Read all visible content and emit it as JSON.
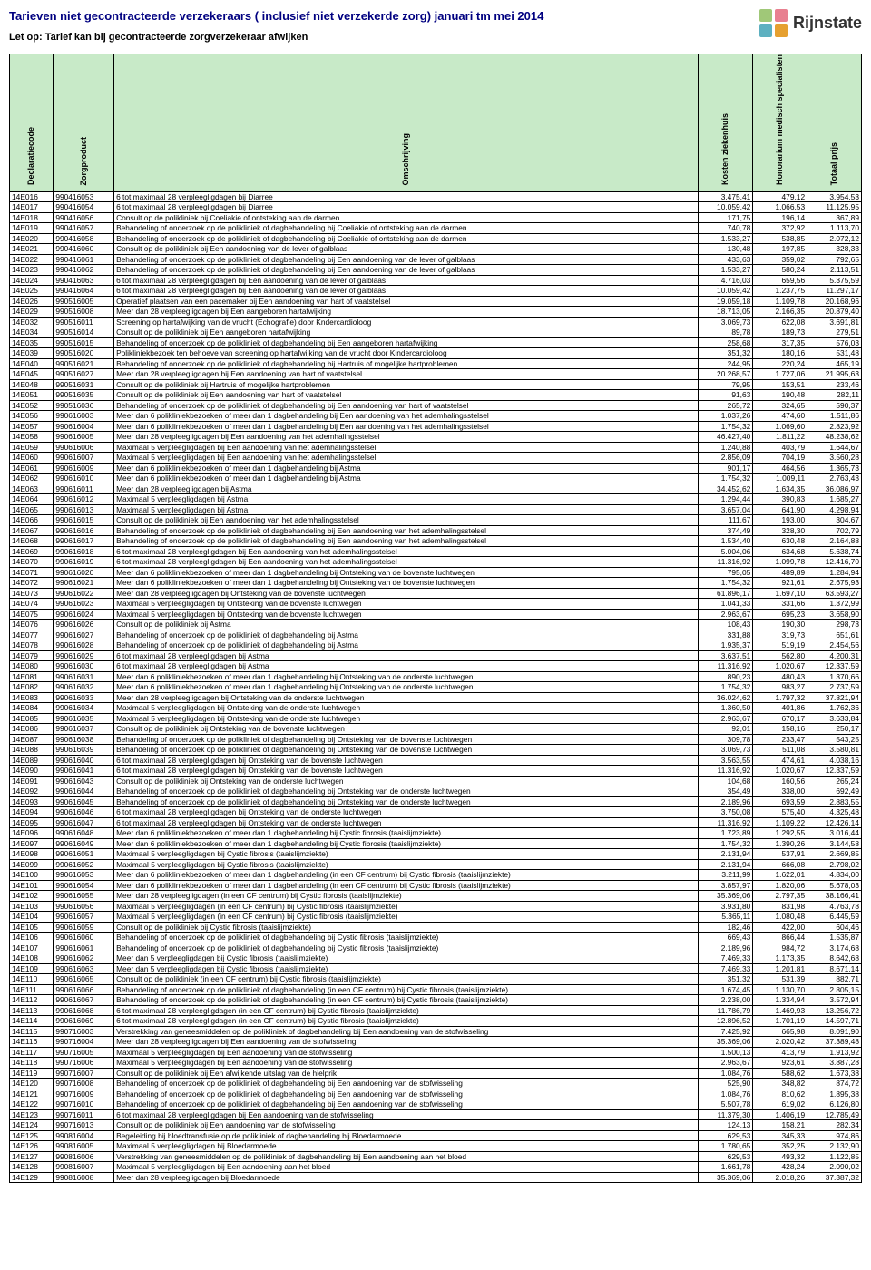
{
  "header": {
    "title": "Tarieven niet gecontracteerde verzekeraars ( inclusief niet verzekerde zorg) januari tm mei 2014",
    "subtitle": "Let op: Tarief kan bij gecontracteerde zorgverzekeraar afwijken",
    "brand": "Rijnstate",
    "logo_colors": [
      "#a0c878",
      "#e88090",
      "#5db0c0",
      "#e6a030"
    ]
  },
  "columns": [
    "Declaratiecode",
    "Zorgproduct",
    "Omschrijving",
    "Kosten ziekenhuis",
    "Honorarium medisch specialisten",
    "Totaal prijs"
  ],
  "rows": [
    [
      "14E016",
      "990416053",
      "6 tot maximaal 28 verpleegligdagen bij Diarree",
      "3.475,41",
      "479,12",
      "3.954,53"
    ],
    [
      "14E017",
      "990416054",
      "6 tot maximaal 28 verpleegligdagen bij Diarree",
      "10.059,42",
      "1.066,53",
      "11.125,95"
    ],
    [
      "14E018",
      "990416056",
      "Consult op de polikliniek bij Coeliakie of ontsteking aan de darmen",
      "171,75",
      "196,14",
      "367,89"
    ],
    [
      "14E019",
      "990416057",
      "Behandeling of onderzoek op de polikliniek of dagbehandeling bij Coeliakie of ontsteking aan de darmen",
      "740,78",
      "372,92",
      "1.113,70"
    ],
    [
      "14E020",
      "990416058",
      "Behandeling of onderzoek op de polikliniek of dagbehandeling bij Coeliakie of ontsteking aan de darmen",
      "1.533,27",
      "538,85",
      "2.072,12"
    ],
    [
      "14E021",
      "990416060",
      "Consult op de polikliniek bij Een aandoening van de lever of galblaas",
      "130,48",
      "197,85",
      "328,33"
    ],
    [
      "14E022",
      "990416061",
      "Behandeling of onderzoek op de polikliniek of dagbehandeling bij Een aandoening van de lever of galblaas",
      "433,63",
      "359,02",
      "792,65"
    ],
    [
      "14E023",
      "990416062",
      "Behandeling of onderzoek op de polikliniek of dagbehandeling bij Een aandoening van de lever of galblaas",
      "1.533,27",
      "580,24",
      "2.113,51"
    ],
    [
      "14E024",
      "990416063",
      "6 tot maximaal 28 verpleegligdagen bij Een aandoening van de lever of galblaas",
      "4.716,03",
      "659,56",
      "5.375,59"
    ],
    [
      "14E025",
      "990416064",
      "6 tot maximaal 28 verpleegligdagen bij Een aandoening van de lever of galblaas",
      "10.059,42",
      "1.237,75",
      "11.297,17"
    ],
    [
      "14E026",
      "990516005",
      "Operatief plaatsen van een pacemaker bij Een aandoening van hart of vaatstelsel",
      "19.059,18",
      "1.109,78",
      "20.168,96"
    ],
    [
      "14E029",
      "990516008",
      "Meer dan 28 verpleegligdagen bij Een aangeboren hartafwijking",
      "18.713,05",
      "2.166,35",
      "20.879,40"
    ],
    [
      "14E032",
      "990516011",
      "Screening op hartafwijking van de vrucht (Echografie) door Kndercardioloog",
      "3.069,73",
      "622,08",
      "3.691,81"
    ],
    [
      "14E034",
      "990516014",
      "Consult op de polikliniek bij Een aangeboren hartafwijking",
      "89,78",
      "189,73",
      "279,51"
    ],
    [
      "14E035",
      "990516015",
      "Behandeling of onderzoek op de polikliniek of dagbehandeling bij Een aangeboren hartafwijking",
      "258,68",
      "317,35",
      "576,03"
    ],
    [
      "14E039",
      "990516020",
      "Polikliniekbezoek ten behoeve van screening op hartafwijking van de vrucht door Kindercardioloog",
      "351,32",
      "180,16",
      "531,48"
    ],
    [
      "14E040",
      "990516021",
      "Behandeling of onderzoek op de polikliniek of dagbehandeling bij Hartruis of mogelijke hartproblemen",
      "244,95",
      "220,24",
      "465,19"
    ],
    [
      "14E045",
      "990516027",
      "Meer dan 28 verpleegligdagen bij Een aandoening van hart of vaatstelsel",
      "20.268,57",
      "1.727,06",
      "21.995,63"
    ],
    [
      "14E048",
      "990516031",
      "Consult op de polikliniek bij Hartruis of mogelijke hartproblemen",
      "79,95",
      "153,51",
      "233,46"
    ],
    [
      "14E051",
      "990516035",
      "Consult op de polikliniek bij Een aandoening van hart of vaatstelsel",
      "91,63",
      "190,48",
      "282,11"
    ],
    [
      "14E052",
      "990516036",
      "Behandeling of onderzoek op de polikliniek of dagbehandeling bij Een aandoening van hart of vaatstelsel",
      "265,72",
      "324,65",
      "590,37"
    ],
    [
      "14E056",
      "990616003",
      "Meer dan 6 polikliniekbezoeken of meer dan 1 dagbehandeling bij Een aandoening van het ademhalingsstelsel",
      "1.037,26",
      "474,60",
      "1.511,86"
    ],
    [
      "14E057",
      "990616004",
      "Meer dan 6 polikliniekbezoeken of meer dan 1 dagbehandeling bij Een aandoening van het ademhalingsstelsel",
      "1.754,32",
      "1.069,60",
      "2.823,92"
    ],
    [
      "14E058",
      "990616005",
      "Meer dan 28 verpleegligdagen bij Een aandoening van het ademhalingsstelsel",
      "46.427,40",
      "1.811,22",
      "48.238,62"
    ],
    [
      "14E059",
      "990616006",
      "Maximaal 5 verpleegligdagen bij Een aandoening van het ademhalingsstelsel",
      "1.240,88",
      "403,79",
      "1.644,67"
    ],
    [
      "14E060",
      "990616007",
      "Maximaal 5 verpleegligdagen bij Een aandoening van het ademhalingsstelsel",
      "2.856,09",
      "704,19",
      "3.560,28"
    ],
    [
      "14E061",
      "990616009",
      "Meer dan 6 polikliniekbezoeken of meer dan 1 dagbehandeling bij Astma",
      "901,17",
      "464,56",
      "1.365,73"
    ],
    [
      "14E062",
      "990616010",
      "Meer dan 6 polikliniekbezoeken of meer dan 1 dagbehandeling bij Astma",
      "1.754,32",
      "1.009,11",
      "2.763,43"
    ],
    [
      "14E063",
      "990616011",
      "Meer dan 28 verpleegligdagen bij Astma",
      "34.452,62",
      "1.634,35",
      "36.086,97"
    ],
    [
      "14E064",
      "990616012",
      "Maximaal 5 verpleegligdagen bij Astma",
      "1.294,44",
      "390,83",
      "1.685,27"
    ],
    [
      "14E065",
      "990616013",
      "Maximaal 5 verpleegligdagen bij Astma",
      "3.657,04",
      "641,90",
      "4.298,94"
    ],
    [
      "14E066",
      "990616015",
      "Consult op de polikliniek bij Een aandoening van het ademhalingsstelsel",
      "111,67",
      "193,00",
      "304,67"
    ],
    [
      "14E067",
      "990616016",
      "Behandeling of onderzoek op de polikliniek of dagbehandeling bij Een aandoening van het ademhalingsstelsel",
      "374,49",
      "328,30",
      "702,79"
    ],
    [
      "14E068",
      "990616017",
      "Behandeling of onderzoek op de polikliniek of dagbehandeling bij Een aandoening van het ademhalingsstelsel",
      "1.534,40",
      "630,48",
      "2.164,88"
    ],
    [
      "14E069",
      "990616018",
      "6 tot maximaal 28 verpleegligdagen bij Een aandoening van het ademhalingsstelsel",
      "5.004,06",
      "634,68",
      "5.638,74"
    ],
    [
      "14E070",
      "990616019",
      "6 tot maximaal 28 verpleegligdagen bij Een aandoening van het ademhalingsstelsel",
      "11.316,92",
      "1.099,78",
      "12.416,70"
    ],
    [
      "14E071",
      "990616020",
      "Meer dan 6 polikliniekbezoeken of meer dan 1 dagbehandeling bij Ontsteking van de bovenste luchtwegen",
      "795,05",
      "489,89",
      "1.284,94"
    ],
    [
      "14E072",
      "990616021",
      "Meer dan 6 polikliniekbezoeken of meer dan 1 dagbehandeling bij Ontsteking van de bovenste luchtwegen",
      "1.754,32",
      "921,61",
      "2.675,93"
    ],
    [
      "14E073",
      "990616022",
      "Meer dan 28 verpleegligdagen bij Ontsteking van de bovenste luchtwegen",
      "61.896,17",
      "1.697,10",
      "63.593,27"
    ],
    [
      "14E074",
      "990616023",
      "Maximaal 5 verpleegligdagen bij Ontsteking van de bovenste luchtwegen",
      "1.041,33",
      "331,66",
      "1.372,99"
    ],
    [
      "14E075",
      "990616024",
      "Maximaal 5 verpleegligdagen bij Ontsteking van de bovenste luchtwegen",
      "2.963,67",
      "695,23",
      "3.658,90"
    ],
    [
      "14E076",
      "990616026",
      "Consult op de polikliniek bij Astma",
      "108,43",
      "190,30",
      "298,73"
    ],
    [
      "14E077",
      "990616027",
      "Behandeling of onderzoek op de polikliniek of dagbehandeling bij Astma",
      "331,88",
      "319,73",
      "651,61"
    ],
    [
      "14E078",
      "990616028",
      "Behandeling of onderzoek op de polikliniek of dagbehandeling bij Astma",
      "1.935,37",
      "519,19",
      "2.454,56"
    ],
    [
      "14E079",
      "990616029",
      "6 tot maximaal 28 verpleegligdagen bij Astma",
      "3.637,51",
      "562,80",
      "4.200,31"
    ],
    [
      "14E080",
      "990616030",
      "6 tot maximaal 28 verpleegligdagen bij Astma",
      "11.316,92",
      "1.020,67",
      "12.337,59"
    ],
    [
      "14E081",
      "990616031",
      "Meer dan 6 polikliniekbezoeken of meer dan 1 dagbehandeling bij Ontsteking van de onderste luchtwegen",
      "890,23",
      "480,43",
      "1.370,66"
    ],
    [
      "14E082",
      "990616032",
      "Meer dan 6 polikliniekbezoeken of meer dan 1 dagbehandeling bij Ontsteking van de onderste luchtwegen",
      "1.754,32",
      "983,27",
      "2.737,59"
    ],
    [
      "14E083",
      "990616033",
      "Meer dan 28 verpleegligdagen bij Ontsteking van de onderste luchtwegen",
      "36.024,62",
      "1.797,32",
      "37.821,94"
    ],
    [
      "14E084",
      "990616034",
      "Maximaal 5 verpleegligdagen bij Ontsteking van de onderste luchtwegen",
      "1.360,50",
      "401,86",
      "1.762,36"
    ],
    [
      "14E085",
      "990616035",
      "Maximaal 5 verpleegligdagen bij Ontsteking van de onderste luchtwegen",
      "2.963,67",
      "670,17",
      "3.633,84"
    ],
    [
      "14E086",
      "990616037",
      "Consult op de polikliniek bij Ontsteking van de bovenste luchtwegen",
      "92,01",
      "158,16",
      "250,17"
    ],
    [
      "14E087",
      "990616038",
      "Behandeling of onderzoek op de polikliniek of dagbehandeling bij Ontsteking van de bovenste luchtwegen",
      "309,78",
      "233,47",
      "543,25"
    ],
    [
      "14E088",
      "990616039",
      "Behandeling of onderzoek op de polikliniek of dagbehandeling bij Ontsteking van de bovenste luchtwegen",
      "3.069,73",
      "511,08",
      "3.580,81"
    ],
    [
      "14E089",
      "990616040",
      "6 tot maximaal 28 verpleegligdagen bij Ontsteking van de bovenste luchtwegen",
      "3.563,55",
      "474,61",
      "4.038,16"
    ],
    [
      "14E090",
      "990616041",
      "6 tot maximaal 28 verpleegligdagen bij Ontsteking van de bovenste luchtwegen",
      "11.316,92",
      "1.020,67",
      "12.337,59"
    ],
    [
      "14E091",
      "990616043",
      "Consult op de polikliniek bij Ontsteking van de onderste luchtwegen",
      "104,68",
      "160,56",
      "265,24"
    ],
    [
      "14E092",
      "990616044",
      "Behandeling of onderzoek op de polikliniek of dagbehandeling bij Ontsteking van de onderste luchtwegen",
      "354,49",
      "338,00",
      "692,49"
    ],
    [
      "14E093",
      "990616045",
      "Behandeling of onderzoek op de polikliniek of dagbehandeling bij Ontsteking van de onderste luchtwegen",
      "2.189,96",
      "693,59",
      "2.883,55"
    ],
    [
      "14E094",
      "990616046",
      "6 tot maximaal 28 verpleegligdagen bij Ontsteking van de onderste luchtwegen",
      "3.750,08",
      "575,40",
      "4.325,48"
    ],
    [
      "14E095",
      "990616047",
      "6 tot maximaal 28 verpleegligdagen bij Ontsteking van de onderste luchtwegen",
      "11.316,92",
      "1.109,22",
      "12.426,14"
    ],
    [
      "14E096",
      "990616048",
      "Meer dan 6 polikliniekbezoeken of meer dan 1 dagbehandeling bij Cystic fibrosis (taaislijmziekte)",
      "1.723,89",
      "1.292,55",
      "3.016,44"
    ],
    [
      "14E097",
      "990616049",
      "Meer dan 6 polikliniekbezoeken of meer dan 1 dagbehandeling bij Cystic fibrosis (taaislijmziekte)",
      "1.754,32",
      "1.390,26",
      "3.144,58"
    ],
    [
      "14E098",
      "990616051",
      "Maximaal 5 verpleegligdagen bij Cystic fibrosis (taaislijmziekte)",
      "2.131,94",
      "537,91",
      "2.669,85"
    ],
    [
      "14E099",
      "990616052",
      "Maximaal 5 verpleegligdagen bij Cystic fibrosis (taaislijmziekte)",
      "2.131,94",
      "666,08",
      "2.798,02"
    ],
    [
      "14E100",
      "990616053",
      "Meer dan 6 polikliniekbezoeken of meer dan 1 dagbehandeling (in een CF centrum) bij Cystic fibrosis (taaislijmziekte)",
      "3.211,99",
      "1.622,01",
      "4.834,00"
    ],
    [
      "14E101",
      "990616054",
      "Meer dan 6 polikliniekbezoeken of meer dan 1 dagbehandeling (in een CF centrum) bij Cystic fibrosis (taaislijmziekte)",
      "3.857,97",
      "1.820,06",
      "5.678,03"
    ],
    [
      "14E102",
      "990616055",
      "Meer dan 28 verpleegligdagen (in een CF centrum) bij Cystic fibrosis (taaislijmziekte)",
      "35.369,06",
      "2.797,35",
      "38.166,41"
    ],
    [
      "14E103",
      "990616056",
      "Maximaal 5 verpleegligdagen (in een CF centrum) bij Cystic fibrosis (taaislijmziekte)",
      "3.931,80",
      "831,98",
      "4.763,78"
    ],
    [
      "14E104",
      "990616057",
      "Maximaal 5 verpleegligdagen (in een CF centrum) bij Cystic fibrosis (taaislijmziekte)",
      "5.365,11",
      "1.080,48",
      "6.445,59"
    ],
    [
      "14E105",
      "990616059",
      "Consult op de polikliniek bij Cystic fibrosis (taaislijmziekte)",
      "182,46",
      "422,00",
      "604,46"
    ],
    [
      "14E106",
      "990616060",
      "Behandeling of onderzoek op de polikliniek of dagbehandeling bij Cystic fibrosis (taaislijmziekte)",
      "669,43",
      "866,44",
      "1.535,87"
    ],
    [
      "14E107",
      "990616061",
      "Behandeling of onderzoek op de polikliniek of dagbehandeling bij Cystic fibrosis (taaislijmziekte)",
      "2.189,96",
      "984,72",
      "3.174,68"
    ],
    [
      "14E108",
      "990616062",
      "Meer dan 5 verpleegligdagen bij Cystic fibrosis (taaislijmziekte)",
      "7.469,33",
      "1.173,35",
      "8.642,68"
    ],
    [
      "14E109",
      "990616063",
      "Meer dan 5 verpleegligdagen bij Cystic fibrosis (taaislijmziekte)",
      "7.469,33",
      "1.201,81",
      "8.671,14"
    ],
    [
      "14E110",
      "990616065",
      "Consult op de polikliniek (in een CF centrum) bij Cystic fibrosis (taaislijmziekte)",
      "351,32",
      "531,39",
      "882,71"
    ],
    [
      "14E111",
      "990616066",
      "Behandeling of onderzoek op de polikliniek of dagbehandeling (in een CF centrum) bij Cystic fibrosis (taaislijmziekte)",
      "1.674,45",
      "1.130,70",
      "2.805,15"
    ],
    [
      "14E112",
      "990616067",
      "Behandeling of onderzoek op de polikliniek of dagbehandeling (in een CF centrum) bij Cystic fibrosis (taaislijmziekte)",
      "2.238,00",
      "1.334,94",
      "3.572,94"
    ],
    [
      "14E113",
      "990616068",
      "6 tot maximaal 28 verpleegligdagen (in een CF centrum) bij Cystic fibrosis (taaislijmziekte)",
      "11.786,79",
      "1.469,93",
      "13.256,72"
    ],
    [
      "14E114",
      "990616069",
      "6 tot maximaal 28 verpleegligdagen (in een CF centrum) bij Cystic fibrosis (taaislijmziekte)",
      "12.896,52",
      "1.701,19",
      "14.597,71"
    ],
    [
      "14E115",
      "990716003",
      "Verstrekking van geneesmiddelen op de polikliniek of dagbehandeling bij Een aandoening van de stofwisseling",
      "7.425,92",
      "665,98",
      "8.091,90"
    ],
    [
      "14E116",
      "990716004",
      "Meer dan 28 verpleegligdagen bij Een aandoening van de stofwisseling",
      "35.369,06",
      "2.020,42",
      "37.389,48"
    ],
    [
      "14E117",
      "990716005",
      "Maximaal 5 verpleegligdagen bij Een aandoening van de stofwisseling",
      "1.500,13",
      "413,79",
      "1.913,92"
    ],
    [
      "14E118",
      "990716006",
      "Maximaal 5 verpleegligdagen bij Een aandoening van de stofwisseling",
      "2.963,67",
      "923,61",
      "3.887,28"
    ],
    [
      "14E119",
      "990716007",
      "Consult op de polikliniek bij Een afwijkende uitslag van de hielprik",
      "1.084,76",
      "588,62",
      "1.673,38"
    ],
    [
      "14E120",
      "990716008",
      "Behandeling of onderzoek op de polikliniek of dagbehandeling bij Een aandoening van de stofwisseling",
      "525,90",
      "348,82",
      "874,72"
    ],
    [
      "14E121",
      "990716009",
      "Behandeling of onderzoek op de polikliniek of dagbehandeling bij Een aandoening van de stofwisseling",
      "1.084,76",
      "810,62",
      "1.895,38"
    ],
    [
      "14E122",
      "990716010",
      "Behandeling of onderzoek op de polikliniek of dagbehandeling bij Een aandoening van de stofwisseling",
      "5.507,78",
      "619,02",
      "6.126,80"
    ],
    [
      "14E123",
      "990716011",
      "6 tot maximaal 28 verpleegligdagen bij Een aandoening van de stofwisseling",
      "11.379,30",
      "1.406,19",
      "12.785,49"
    ],
    [
      "14E124",
      "990716013",
      "Consult op de polikliniek bij Een aandoening van de stofwisseling",
      "124,13",
      "158,21",
      "282,34"
    ],
    [
      "14E125",
      "990816004",
      "Begeleiding bij bloedtransfusie op de polikliniek of dagbehandeling bij Bloedarmoede",
      "629,53",
      "345,33",
      "974,86"
    ],
    [
      "14E126",
      "990816005",
      "Maximaal 5 verpleegligdagen bij Bloedarmoede",
      "1.780,65",
      "352,25",
      "2.132,90"
    ],
    [
      "14E127",
      "990816006",
      "Verstrekking van geneesmiddelen op de polikliniek of dagbehandeling bij Een aandoening aan het bloed",
      "629,53",
      "493,32",
      "1.122,85"
    ],
    [
      "14E128",
      "990816007",
      "Maximaal 5 verpleegligdagen bij Een aandoening aan het bloed",
      "1.661,78",
      "428,24",
      "2.090,02"
    ],
    [
      "14E129",
      "990816008",
      "Meer dan 28 verpleegligdagen bij Bloedarmoede",
      "35.369,06",
      "2.018,26",
      "37.387,32"
    ]
  ]
}
